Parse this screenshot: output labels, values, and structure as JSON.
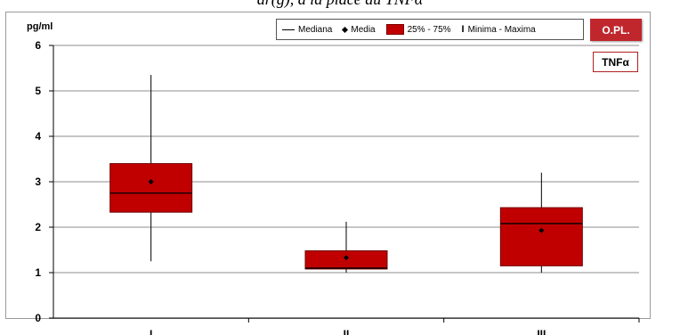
{
  "caption": "ar(g), a la place du TNFα",
  "badges": {
    "opl": "O.PL.",
    "marker": "TNFα"
  },
  "legend": {
    "median": "Mediana",
    "mean": "Media",
    "iqr": "25% - 75%",
    "range": "Minima - Maxima"
  },
  "colors": {
    "box": "#c00000",
    "box_stroke": "#6e0000",
    "badge": "#c0272d",
    "grid": "#8c8c8c"
  },
  "chart_data": {
    "type": "boxplot",
    "ylabel": "pg/ml",
    "ylim": [
      0,
      6
    ],
    "yticks": [
      "0",
      "1",
      "2",
      "3",
      "4",
      "5",
      "6"
    ],
    "categories": [
      "I",
      "II",
      "III"
    ],
    "grid": true,
    "legend_position": "top-right",
    "series": [
      {
        "category": "I",
        "min": 1.25,
        "q1": 2.33,
        "median": 2.75,
        "q3": 3.4,
        "max": 5.35,
        "mean": 3.0
      },
      {
        "category": "II",
        "min": 1.0,
        "q1": 1.08,
        "median": 1.1,
        "q3": 1.48,
        "max": 2.12,
        "mean": 1.33
      },
      {
        "category": "III",
        "min": 1.0,
        "q1": 1.15,
        "median": 2.08,
        "q3": 2.43,
        "max": 3.2,
        "mean": 1.93
      }
    ]
  }
}
